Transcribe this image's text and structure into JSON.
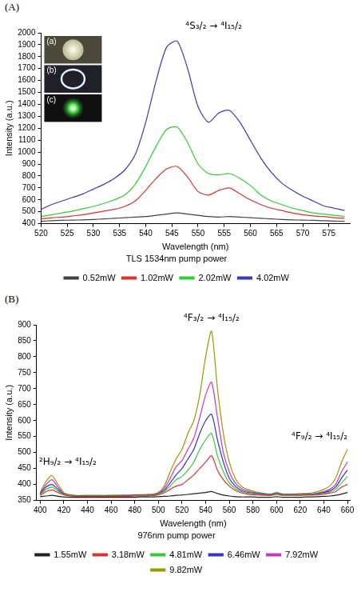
{
  "chart_data": [
    {
      "type": "line",
      "panel_label": "(A)",
      "x_label": "Wavelength (nm)",
      "y_label": "Intensity (a.u.)",
      "legend_title": "TLS 1534nm pump power",
      "legend": "bottom",
      "grid": false,
      "xlim": [
        520,
        579
      ],
      "xticks": [
        520,
        525,
        530,
        535,
        540,
        545,
        550,
        555,
        560,
        565,
        570,
        575
      ],
      "ylim": [
        400,
        2000
      ],
      "yticks": [
        400,
        500,
        600,
        700,
        800,
        900,
        1000,
        1100,
        1200,
        1300,
        1400,
        1500,
        1600,
        1700,
        1800,
        1900,
        2000
      ],
      "x": [
        520,
        522,
        524,
        526,
        528,
        530,
        532,
        534,
        536,
        538,
        540,
        542,
        544,
        546,
        548,
        550,
        552,
        554,
        556,
        558,
        560,
        562,
        564,
        566,
        568,
        570,
        572,
        574,
        576,
        578
      ],
      "series": [
        {
          "name": "0.52mW",
          "color": "#404040",
          "values": [
            420,
            425,
            428,
            430,
            432,
            435,
            440,
            445,
            450,
            455,
            460,
            470,
            480,
            490,
            480,
            470,
            460,
            455,
            460,
            455,
            450,
            445,
            440,
            435,
            432,
            430,
            428,
            425,
            422,
            420
          ]
        },
        {
          "name": "1.02mW",
          "color": "#e03030",
          "values": [
            440,
            450,
            455,
            465,
            475,
            490,
            505,
            520,
            545,
            590,
            680,
            780,
            860,
            880,
            790,
            670,
            640,
            680,
            700,
            650,
            600,
            560,
            530,
            510,
            490,
            475,
            465,
            460,
            450,
            445
          ]
        },
        {
          "name": "2.02mW",
          "color": "#33cc33",
          "values": [
            460,
            475,
            490,
            505,
            525,
            545,
            570,
            600,
            640,
            730,
            880,
            1050,
            1190,
            1210,
            1080,
            900,
            820,
            810,
            820,
            780,
            720,
            640,
            590,
            560,
            530,
            510,
            490,
            480,
            470,
            460
          ]
        },
        {
          "name": "4.02mW",
          "color": "#3b3bb0",
          "values": [
            520,
            560,
            590,
            620,
            650,
            690,
            730,
            780,
            850,
            980,
            1250,
            1600,
            1880,
            1930,
            1700,
            1380,
            1250,
            1330,
            1350,
            1250,
            1100,
            950,
            830,
            740,
            680,
            630,
            590,
            550,
            530,
            510
          ]
        }
      ],
      "annotations": [
        {
          "text": "⁴S₃/₂ → ⁴I₁₅/₂",
          "x": 553,
          "y": 2000
        }
      ],
      "insets": [
        "(a)",
        "(b)",
        "(c)"
      ]
    },
    {
      "type": "line",
      "panel_label": "(B)",
      "x_label": "Wavelength (nm)",
      "y_label": "Intensity (a.u.)",
      "legend_title": "976nm pump power",
      "legend": "bottom",
      "grid": false,
      "xlim": [
        397,
        662
      ],
      "xticks": [
        400,
        420,
        440,
        460,
        480,
        500,
        520,
        540,
        560,
        580,
        600,
        620,
        640,
        660
      ],
      "ylim": [
        350,
        900
      ],
      "yticks": [
        350,
        400,
        450,
        500,
        550,
        600,
        650,
        700,
        750,
        800,
        850,
        900
      ],
      "x": [
        400,
        405,
        410,
        415,
        420,
        425,
        430,
        435,
        440,
        445,
        450,
        455,
        460,
        465,
        470,
        475,
        480,
        485,
        490,
        495,
        500,
        505,
        510,
        515,
        520,
        525,
        530,
        535,
        540,
        545,
        550,
        555,
        560,
        565,
        570,
        575,
        580,
        585,
        590,
        595,
        600,
        605,
        610,
        615,
        620,
        625,
        630,
        635,
        640,
        645,
        650,
        655,
        660
      ],
      "series": [
        {
          "name": "1.55mW",
          "color": "#222222",
          "values": [
            362,
            364,
            366,
            363,
            361,
            360,
            360,
            360,
            360,
            360,
            360,
            360,
            360,
            360,
            360,
            360,
            360,
            361,
            361,
            361,
            362,
            363,
            364,
            366,
            367,
            369,
            371,
            373,
            375,
            378,
            372,
            367,
            364,
            362,
            361,
            361,
            361,
            360,
            360,
            360,
            362,
            360,
            360,
            360,
            360,
            361,
            361,
            362,
            363,
            364,
            366,
            370,
            375
          ]
        },
        {
          "name": "3.18mW",
          "color": "#e03030",
          "values": [
            366,
            378,
            383,
            375,
            368,
            364,
            363,
            363,
            363,
            363,
            363,
            363,
            363,
            363,
            363,
            363,
            364,
            364,
            364,
            365,
            368,
            374,
            385,
            395,
            400,
            415,
            430,
            450,
            470,
            490,
            445,
            415,
            395,
            382,
            374,
            370,
            368,
            367,
            366,
            366,
            369,
            366,
            366,
            366,
            366,
            367,
            367,
            368,
            370,
            373,
            378,
            392,
            400
          ]
        },
        {
          "name": "4.81mW",
          "color": "#33cc33",
          "values": [
            368,
            385,
            392,
            380,
            370,
            365,
            364,
            364,
            364,
            364,
            364,
            364,
            364,
            364,
            364,
            364,
            365,
            365,
            365,
            366,
            370,
            378,
            395,
            415,
            425,
            445,
            470,
            510,
            540,
            560,
            490,
            440,
            405,
            388,
            378,
            373,
            371,
            369,
            368,
            367,
            371,
            367,
            367,
            367,
            367,
            368,
            368,
            370,
            372,
            376,
            385,
            405,
            425
          ]
        },
        {
          "name": "6.46mW",
          "color": "#3333cc",
          "values": [
            370,
            392,
            400,
            385,
            371,
            366,
            365,
            365,
            365,
            365,
            365,
            365,
            365,
            365,
            365,
            365,
            366,
            366,
            366,
            367,
            372,
            382,
            405,
            430,
            450,
            480,
            510,
            560,
            600,
            620,
            540,
            470,
            420,
            395,
            382,
            376,
            373,
            371,
            370,
            369,
            373,
            369,
            369,
            369,
            369,
            370,
            370,
            372,
            375,
            380,
            392,
            420,
            445
          ]
        },
        {
          "name": "7.92mW",
          "color": "#cc33cc",
          "values": [
            372,
            400,
            415,
            392,
            372,
            366,
            365,
            365,
            365,
            365,
            365,
            365,
            365,
            365,
            366,
            366,
            366,
            367,
            367,
            368,
            372,
            388,
            420,
            455,
            475,
            510,
            545,
            610,
            680,
            720,
            610,
            500,
            440,
            405,
            388,
            380,
            376,
            372,
            370,
            368,
            372,
            368,
            368,
            368,
            368,
            369,
            370,
            373,
            378,
            385,
            400,
            440,
            470
          ]
        },
        {
          "name": "9.82mW",
          "color": "#999900",
          "values": [
            375,
            410,
            428,
            400,
            375,
            368,
            366,
            366,
            366,
            366,
            366,
            366,
            367,
            367,
            367,
            367,
            368,
            368,
            369,
            370,
            375,
            395,
            440,
            480,
            510,
            560,
            600,
            680,
            800,
            880,
            700,
            560,
            470,
            420,
            395,
            385,
            380,
            375,
            372,
            370,
            375,
            370,
            370,
            370,
            372,
            372,
            374,
            378,
            385,
            395,
            420,
            470,
            510
          ]
        }
      ],
      "annotations": [
        {
          "text": "²H₉/₂ → ⁴I₁₅/₂",
          "x": 415,
          "y": 450
        },
        {
          "text": "⁴F₃/₂ → ⁴I₁₅/₂",
          "x": 545,
          "y": 900
        },
        {
          "text": "⁴F₉/₂ → ⁴I₁₅/₂",
          "x": 650,
          "y": 530
        }
      ]
    }
  ]
}
